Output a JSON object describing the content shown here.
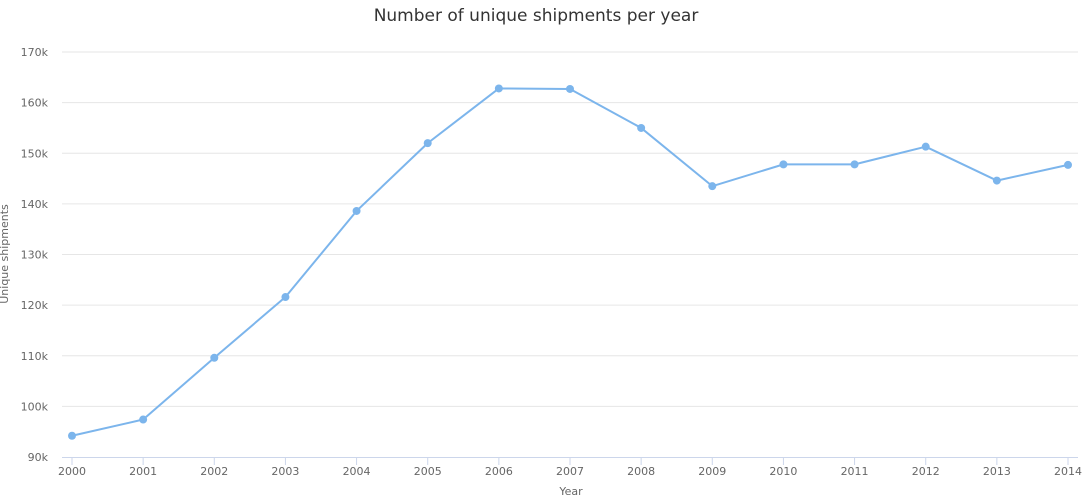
{
  "chart_data": {
    "type": "line",
    "title": "Number of unique shipments per year",
    "xlabel": "Year",
    "ylabel": "Unique shipments",
    "categories": [
      "2000",
      "2001",
      "2002",
      "2003",
      "2004",
      "2005",
      "2006",
      "2007",
      "2008",
      "2009",
      "2010",
      "2011",
      "2012",
      "2013",
      "2014"
    ],
    "series": [
      {
        "values": [
          94200,
          97400,
          109600,
          121600,
          138600,
          152000,
          162800,
          162700,
          155000,
          143500,
          147800,
          147800,
          151300,
          144600,
          147700
        ],
        "color": "#7cb5ec"
      }
    ],
    "ylim": [
      90000,
      170000
    ],
    "yticks": [
      90000,
      100000,
      110000,
      120000,
      130000,
      140000,
      150000,
      160000,
      170000
    ],
    "ytick_labels": [
      "90k",
      "100k",
      "110k",
      "120k",
      "130k",
      "140k",
      "150k",
      "160k",
      "170k"
    ],
    "grid": true,
    "legend": "none"
  }
}
